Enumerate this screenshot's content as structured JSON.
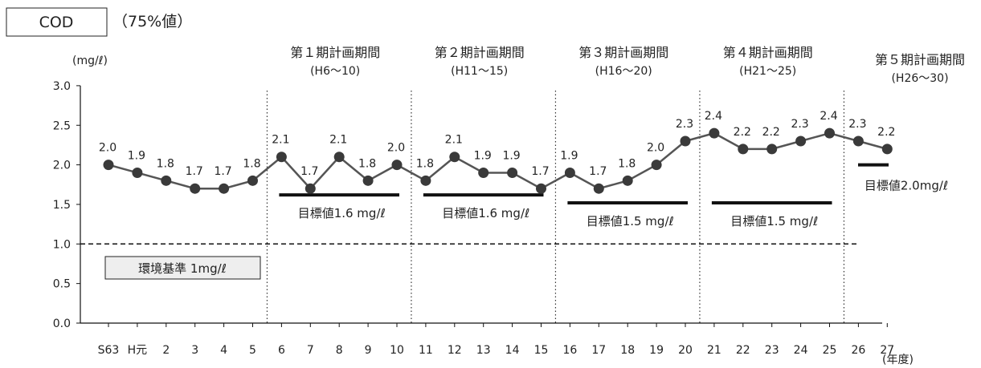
{
  "chart_data": {
    "type": "line",
    "title": "COD",
    "subtitle": "（75%値）",
    "ylabel": "(mg/ℓ)",
    "xlabel": "(年度)",
    "ylim": [
      0,
      3.0
    ],
    "yticks": [
      "0.0",
      "0.5",
      "1.0",
      "1.5",
      "2.0",
      "2.5",
      "3.0"
    ],
    "categories": [
      "S63",
      "H元",
      "2",
      "3",
      "4",
      "5",
      "6",
      "7",
      "8",
      "9",
      "10",
      "11",
      "12",
      "13",
      "14",
      "15",
      "16",
      "17",
      "18",
      "19",
      "20",
      "21",
      "22",
      "23",
      "24",
      "25",
      "26",
      "27"
    ],
    "series": [
      {
        "values": [
          2.0,
          1.9,
          1.8,
          1.7,
          1.7,
          1.8,
          2.1,
          1.7,
          2.1,
          1.8,
          2.0,
          1.8,
          2.1,
          1.9,
          1.9,
          1.7,
          1.9,
          1.7,
          1.8,
          2.0,
          2.3,
          2.4,
          2.2,
          2.2,
          2.3,
          2.4,
          2.3,
          2.2
        ],
        "labels": [
          "2.0",
          "1.9",
          "1.8",
          "1.7",
          "1.7",
          "1.8",
          "2.1",
          "1.7",
          "2.1",
          "1.8",
          "2.0",
          "1.8",
          "2.1",
          "1.9",
          "1.9",
          "1.7",
          "1.9",
          "1.7",
          "1.8",
          "2.0",
          "2.3",
          "2.4",
          "2.2",
          "2.2",
          "2.3",
          "2.4",
          "2.3",
          "2.2"
        ]
      }
    ],
    "standard": {
      "value": 1.0,
      "label": "環境基準 1mg/ℓ"
    },
    "periods": [
      {
        "title": "第１期計画期間",
        "range": "(H6〜10)",
        "target": 1.6,
        "target_label": "目標値1.6 mg/ℓ",
        "start": 6,
        "end": 10
      },
      {
        "title": "第２期計画期間",
        "range": "(H11〜15)",
        "target": 1.6,
        "target_label": "目標値1.6 mg/ℓ",
        "start": 11,
        "end": 15
      },
      {
        "title": "第３期計画期間",
        "range": "(H16〜20)",
        "target": 1.5,
        "target_label": "目標値1.5 mg/ℓ",
        "start": 16,
        "end": 20
      },
      {
        "title": "第４期計画期間",
        "range": "(H21〜25)",
        "target": 1.5,
        "target_label": "目標値1.5 mg/ℓ",
        "start": 21,
        "end": 25
      },
      {
        "title": "第５期計画期間",
        "range": "(H26〜30)",
        "target": 2.0,
        "target_label": "目標値2.0mg/ℓ",
        "start": 26,
        "end": 27
      }
    ],
    "colors": {
      "line": "#555555",
      "marker": "#3a3a3a",
      "target": "#111111",
      "standard": "#111111"
    }
  }
}
